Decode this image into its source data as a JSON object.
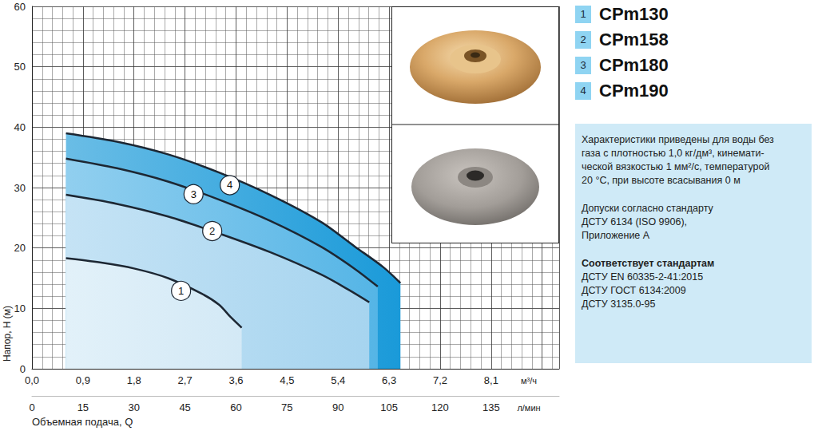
{
  "chart_data": {
    "type": "line",
    "xlabel": "Объемная подача, Q",
    "ylabel": "Напор, Н (м)",
    "x_unit": "м³/ч",
    "x2_unit": "л/мин",
    "xlim": [
      0,
      9.3
    ],
    "xticks": [
      {
        "value": 0,
        "label": "0,0"
      },
      {
        "value": 0.9,
        "label": "0,9"
      },
      {
        "value": 1.8,
        "label": "1,8"
      },
      {
        "value": 2.7,
        "label": "2,7"
      },
      {
        "value": 3.6,
        "label": "3,6"
      },
      {
        "value": 4.5,
        "label": "4,5"
      },
      {
        "value": 5.4,
        "label": "5,4"
      },
      {
        "value": 6.3,
        "label": "6,3"
      },
      {
        "value": 7.2,
        "label": "7,2"
      },
      {
        "value": 8.1,
        "label": "8,1"
      }
    ],
    "x2lim": [
      0,
      155
    ],
    "x2ticks": [
      0,
      15,
      30,
      45,
      60,
      75,
      90,
      105,
      120,
      135
    ],
    "ylim": [
      0,
      60
    ],
    "yticks": [
      0,
      10,
      20,
      30,
      40,
      50,
      60
    ],
    "grid": true,
    "legend": "right",
    "series": [
      {
        "name": "CPm130",
        "number": "1",
        "color": "#d3e9f6",
        "x": [
          0.6,
          1.2,
          1.8,
          2.4,
          3.0,
          3.3,
          3.5,
          3.7
        ],
        "values": [
          18.3,
          17.6,
          16.6,
          15.0,
          12.4,
          10.6,
          8.6,
          6.8
        ]
      },
      {
        "name": "CPm158",
        "number": "2",
        "color": "#a6d4ef",
        "x": [
          0.6,
          1.5,
          2.4,
          3.3,
          4.2,
          5.1,
          5.6,
          5.95
        ],
        "values": [
          28.8,
          27.3,
          25.2,
          22.4,
          19.3,
          15.6,
          13.0,
          11.0
        ]
      },
      {
        "name": "CPm180",
        "number": "3",
        "color": "#55b5e6",
        "x": [
          0.6,
          1.5,
          2.4,
          3.3,
          4.2,
          5.1,
          5.7,
          6.1
        ],
        "values": [
          34.8,
          33.2,
          31.0,
          28.0,
          24.5,
          20.2,
          16.5,
          13.6
        ]
      },
      {
        "name": "CPm190",
        "number": "4",
        "color": "#1a9ad9",
        "x": [
          0.6,
          1.5,
          2.4,
          3.3,
          4.2,
          5.1,
          5.7,
          6.2,
          6.5
        ],
        "values": [
          39.0,
          37.6,
          35.5,
          32.5,
          28.8,
          24.3,
          20.2,
          16.8,
          14.2
        ]
      }
    ],
    "annotations": [
      {
        "text": "1",
        "x": 2.63,
        "y": 12.9
      },
      {
        "text": "2",
        "x": 3.18,
        "y": 22.8
      },
      {
        "text": "3",
        "x": 2.85,
        "y": 28.9
      },
      {
        "text": "4",
        "x": 3.49,
        "y": 30.4
      }
    ],
    "notes": [
      {
        "lines": [
          "Характеристики приведены для воды без",
          "газа с плотностью 1,0 кг/дм³, кинемати-",
          "ческой вязкостью 1 мм²/с, температурой",
          "20 °С, при высоте всасывания 0 м"
        ]
      },
      {
        "lines": [
          "Допуски согласно стандарту",
          "ДСТУ 6134 (ISO 9906),",
          "Приложение А"
        ]
      },
      {
        "heading": "Соответствует стандартам",
        "lines": [
          "ДСТУ EN 60335-2-41:2015",
          "ДСТУ ГОСТ 6134:2009",
          "ДСТУ 3135.0-95"
        ]
      }
    ]
  }
}
